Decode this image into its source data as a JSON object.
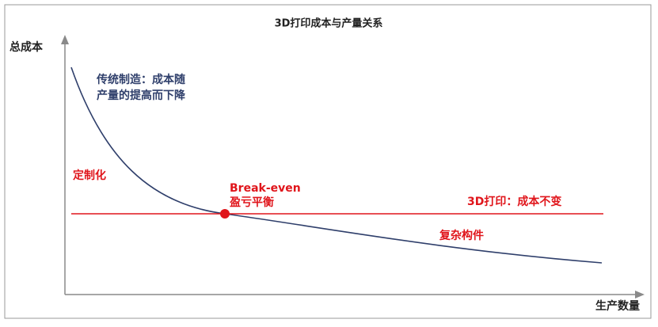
{
  "title": "3D打印成本与产量关系",
  "y_axis_label": "总成本",
  "x_axis_label": "生产数量",
  "annotations": {
    "traditional_line1": "传统制造：成本随",
    "traditional_line2": "产量的提高而下降",
    "customized": "定制化",
    "break_even_en": "Break-even",
    "break_even_cn": "盈亏平衡",
    "printing_3d": "3D打印：成本不变",
    "complex_parts": "复杂构件"
  }
}
